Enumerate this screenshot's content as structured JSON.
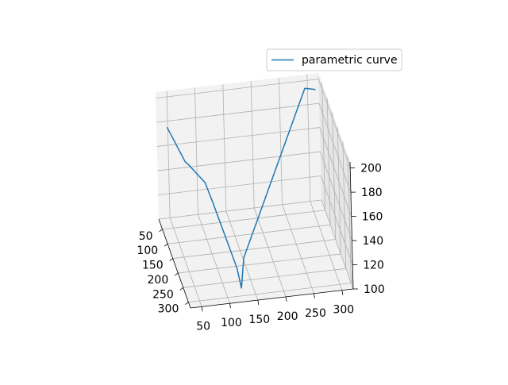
{
  "chart_data": {
    "type": "line",
    "projection": "3d",
    "legend": {
      "placement": "top-right",
      "entries": [
        "parametric curve"
      ]
    },
    "series": [
      {
        "name": "parametric curve",
        "color": "#1f77b4",
        "points": [
          [
            310,
            40,
            198
          ],
          [
            291,
            40,
            200
          ],
          [
            135,
            272,
            124
          ],
          [
            128,
            282,
            102
          ],
          [
            125,
            258,
            113
          ],
          [
            90,
            225,
            162
          ],
          [
            80,
            212,
            175
          ],
          [
            62,
            145,
            175
          ],
          [
            58,
            140,
            176
          ],
          [
            35,
            95,
            195
          ]
        ]
      }
    ],
    "axes": {
      "x": {
        "ticks": [
          50,
          100,
          150,
          200,
          250,
          300
        ],
        "lim": [
          30,
          320
        ]
      },
      "y": {
        "ticks": [
          50,
          100,
          150,
          200,
          250,
          300
        ],
        "lim": [
          15,
          320
        ]
      },
      "z": {
        "ticks": [
          100,
          120,
          140,
          160,
          180,
          200
        ],
        "lim": [
          100,
          205
        ]
      }
    },
    "grid": true
  }
}
